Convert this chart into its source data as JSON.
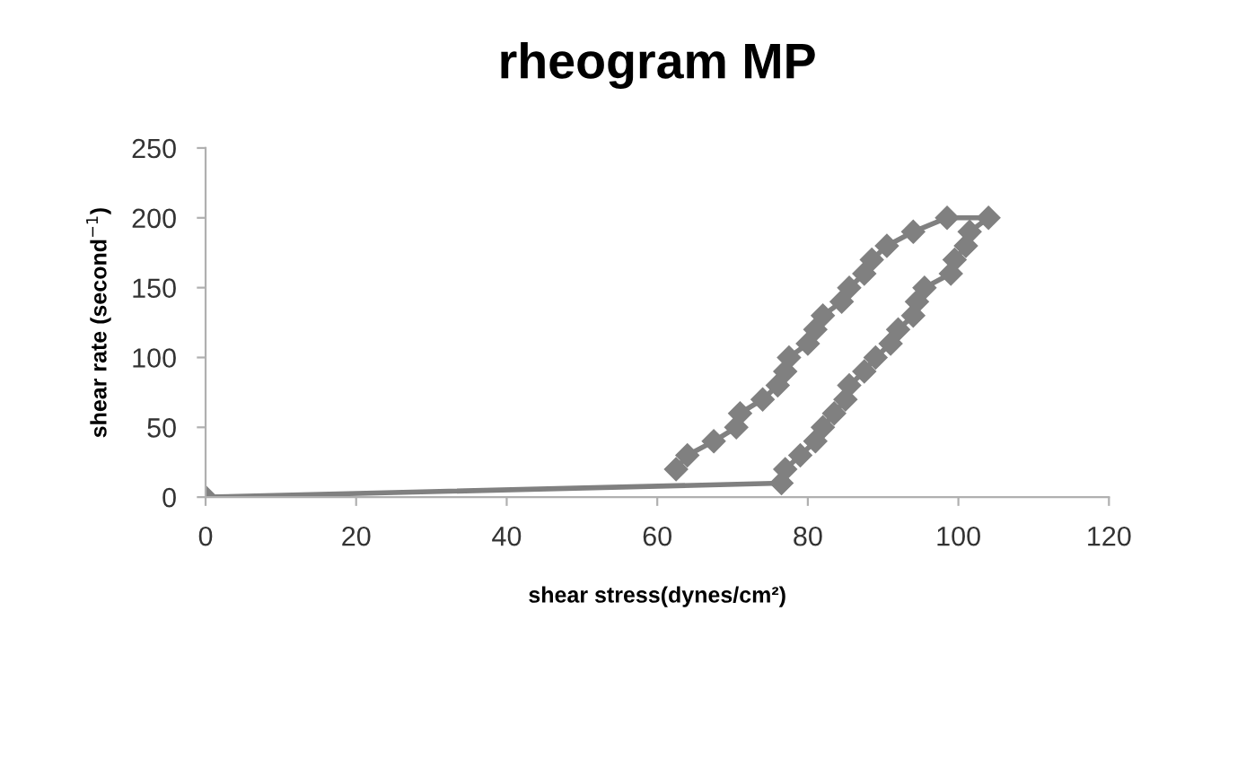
{
  "chart_data": {
    "type": "line",
    "title": "rheogram MP",
    "xlabel": "shear stress(dynes/cm²)",
    "ylabel": "shear rate (second$^{−1}$)",
    "xlim": [
      0,
      120
    ],
    "xticks": [
      0,
      20,
      40,
      60,
      80,
      100,
      120
    ],
    "ylim": [
      0,
      250
    ],
    "yticks": [
      0,
      50,
      100,
      150,
      200,
      250
    ],
    "grid": false,
    "legend": false,
    "marker": "diamond",
    "line_style": "solid",
    "series": [
      {
        "color": "#808080",
        "x": [
          0,
          76.5,
          77,
          79,
          81,
          82,
          83.5,
          85,
          85.5,
          87.5,
          89,
          91,
          92,
          94,
          94.5,
          95.5,
          99,
          99.5,
          101,
          101.5,
          104,
          98.5,
          94,
          90.5,
          88.5,
          87.5,
          85.5,
          84.5,
          82,
          81,
          80,
          77.5,
          77,
          76,
          74,
          71,
          70.5,
          67.5,
          64,
          62.5
        ],
        "values": [
          0,
          10,
          20,
          30,
          40,
          50,
          60,
          70,
          80,
          90,
          100,
          110,
          120,
          130,
          140,
          150,
          160,
          170,
          180,
          190,
          200,
          200,
          190,
          180,
          170,
          160,
          150,
          140,
          130,
          120,
          110,
          100,
          90,
          80,
          70,
          60,
          50,
          40,
          30,
          20
        ]
      }
    ]
  }
}
